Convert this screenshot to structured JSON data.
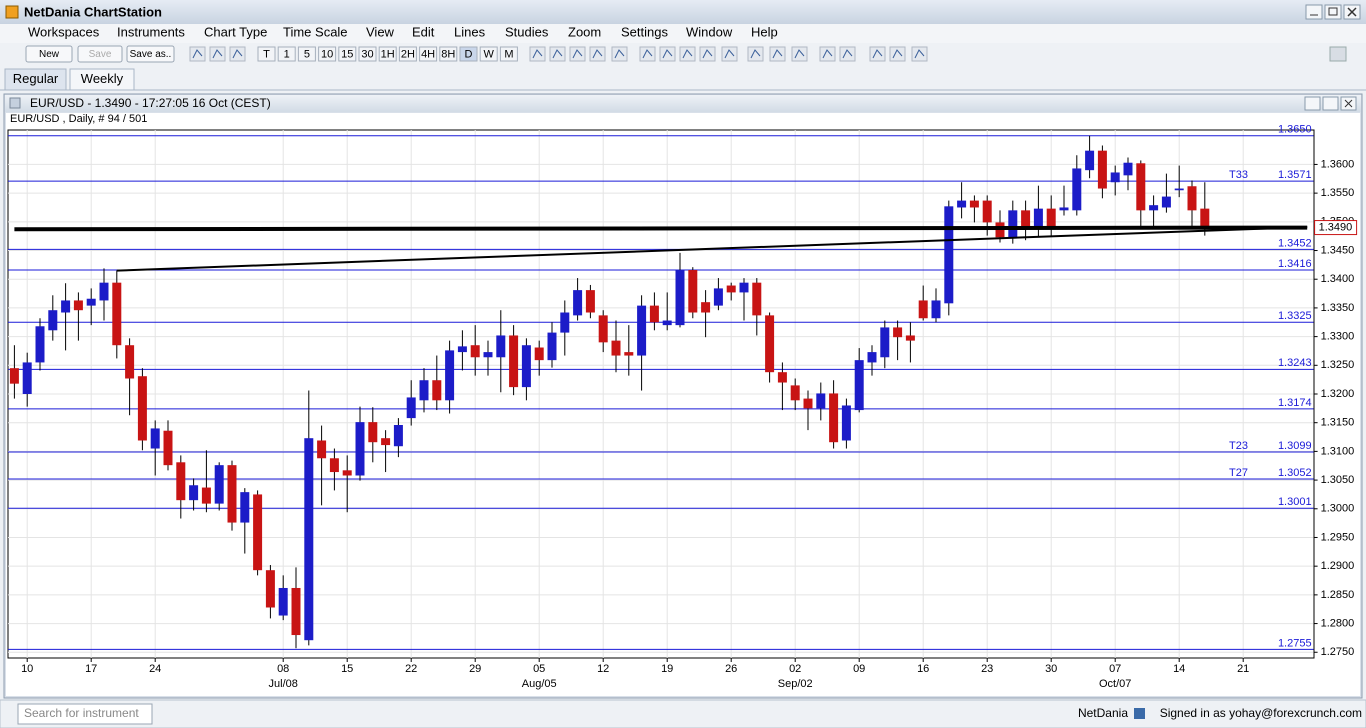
{
  "app": {
    "title": "NetDania ChartStation",
    "menu": [
      "Workspaces",
      "Instruments",
      "Chart Type",
      "Time Scale",
      "View",
      "Edit",
      "Lines",
      "Studies",
      "Zoom",
      "Settings",
      "Window",
      "Help"
    ],
    "toolbar_buttons": [
      "New",
      "Save",
      "Save as.."
    ],
    "timeframes": [
      "T",
      "1",
      "5",
      "10",
      "15",
      "30",
      "1H",
      "2H",
      "4H",
      "8H",
      "D",
      "W",
      "M"
    ],
    "tabs": [
      "Regular",
      "Weekly"
    ],
    "status": {
      "search_placeholder": "Search for instrument",
      "brand": "NetDania",
      "signed_in": "Signed in as yohay@forexcrunch.com"
    }
  },
  "window": {
    "title": "EUR/USD - 1.3490 - 17:27:05 16 Oct (CEST)",
    "subtitle": "EUR/USD , Daily, # 94 / 501"
  },
  "chart_data": {
    "type": "candlestick",
    "categories": [
      null,
      "10",
      null,
      null,
      null,
      null,
      "17",
      null,
      null,
      null,
      null,
      "24",
      null,
      null,
      null,
      null,
      null,
      null,
      null,
      null,
      null,
      "08",
      null,
      null,
      null,
      null,
      "15",
      null,
      null,
      null,
      null,
      "22",
      null,
      null,
      null,
      null,
      "29",
      null,
      null,
      null,
      null,
      "05",
      null,
      null,
      null,
      null,
      "12",
      null,
      null,
      null,
      null,
      "19",
      null,
      null,
      null,
      null,
      "26",
      null,
      null,
      null,
      null,
      "02",
      null,
      null,
      null,
      null,
      "09",
      null,
      null,
      null,
      null,
      "16",
      null,
      null,
      null,
      null,
      "23",
      null,
      null,
      null,
      null,
      "30",
      null,
      null,
      null,
      null,
      "07",
      null,
      null,
      null,
      null,
      "14",
      null,
      null,
      null,
      null,
      "21",
      null,
      null,
      null,
      null,
      null
    ],
    "month_labels": [
      null,
      null,
      null,
      null,
      null,
      null,
      null,
      null,
      null,
      null,
      null,
      null,
      null,
      null,
      null,
      null,
      null,
      null,
      null,
      null,
      null,
      "Jul/08",
      null,
      null,
      null,
      null,
      null,
      null,
      null,
      null,
      null,
      null,
      null,
      null,
      null,
      null,
      null,
      null,
      null,
      null,
      null,
      "Aug/05",
      null,
      null,
      null,
      null,
      null,
      null,
      null,
      null,
      null,
      null,
      null,
      null,
      null,
      null,
      null,
      null,
      null,
      null,
      null,
      "Sep/02",
      null,
      null,
      null,
      null,
      null,
      null,
      null,
      null,
      null,
      null,
      null,
      null,
      null,
      null,
      null,
      null,
      null,
      null,
      null,
      null,
      null,
      null,
      null,
      null,
      "Oct/07",
      null,
      null,
      null,
      null,
      null,
      null,
      null,
      null,
      null,
      null,
      null,
      null,
      null,
      null,
      null
    ],
    "open": [
      1.3245,
      1.32,
      1.3255,
      1.3311,
      1.3342,
      1.3363,
      1.3354,
      1.3363,
      1.3394,
      1.3285,
      1.3231,
      1.3105,
      1.3136,
      1.3081,
      1.3015,
      1.3037,
      1.3009,
      1.3076,
      1.2976,
      1.3025,
      1.2893,
      1.2814,
      1.2862,
      1.2771,
      1.3119,
      1.3088,
      1.3067,
      1.3058,
      1.3151,
      1.3123,
      1.3109,
      1.3158,
      1.3189,
      1.3224,
      1.3189,
      1.3273,
      1.3285,
      1.3264,
      1.3264,
      1.3302,
      1.3212,
      1.3281,
      1.3259,
      1.3307,
      1.3337,
      1.3381,
      1.3337,
      1.3293,
      1.3273,
      1.3267,
      1.3354,
      1.332,
      1.332,
      1.3416,
      1.336,
      1.3354,
      1.3389,
      1.3377,
      1.3394,
      1.3337,
      1.3238,
      1.3215,
      1.3192,
      1.3175,
      1.3201,
      1.3119,
      1.3172,
      1.3255,
      1.3264,
      1.3316,
      1.3302,
      1.3363,
      1.3332,
      1.3358,
      1.3525,
      1.3537,
      1.3537,
      1.3499,
      1.3473,
      1.352,
      1.3489,
      1.3523,
      1.352,
      1.352,
      1.359,
      1.3624,
      1.3569,
      1.3581,
      1.3602,
      1.352,
      1.3525,
      1.3555,
      1.3562,
      1.3523,
      null,
      null,
      null,
      null,
      null,
      null,
      null,
      null
    ],
    "high": [
      1.3285,
      1.3272,
      1.3332,
      1.3372,
      1.3393,
      1.3377,
      1.3384,
      1.3419,
      1.3415,
      1.3297,
      1.3245,
      1.3154,
      1.3154,
      1.3093,
      1.3053,
      1.3102,
      1.3081,
      1.3084,
      1.3036,
      1.3032,
      1.2902,
      1.2884,
      1.2898,
      1.3206,
      1.3145,
      1.3105,
      1.3093,
      1.3178,
      1.3177,
      1.3137,
      1.3158,
      1.3224,
      1.3245,
      1.3267,
      1.3293,
      1.3311,
      1.332,
      1.3293,
      1.3346,
      1.332,
      1.3297,
      1.3293,
      1.3325,
      1.3363,
      1.3402,
      1.339,
      1.3346,
      1.3328,
      1.332,
      1.3372,
      1.3377,
      1.3377,
      1.3446,
      1.3421,
      1.3381,
      1.3402,
      1.3394,
      1.3402,
      1.3402,
      1.3342,
      1.3255,
      1.3227,
      1.3206,
      1.322,
      1.3224,
      1.3192,
      1.328,
      1.3285,
      1.3328,
      1.3328,
      1.3325,
      1.3389,
      1.3384,
      1.3537,
      1.3569,
      1.3546,
      1.3546,
      1.352,
      1.3537,
      1.3537,
      1.3563,
      1.3546,
      1.3563,
      1.3616,
      1.365,
      1.3633,
      1.3598,
      1.3612,
      1.3607,
      1.3546,
      1.3584,
      1.3598,
      1.3572,
      1.3569,
      null,
      null,
      null,
      null,
      null,
      null,
      null,
      null
    ],
    "low": [
      1.3192,
      1.3178,
      1.3241,
      1.3293,
      1.3276,
      1.3293,
      1.332,
      1.3328,
      1.3262,
      1.3163,
      1.3102,
      1.3058,
      1.3067,
      1.2983,
      1.2997,
      1.2994,
      1.2997,
      1.2962,
      1.2922,
      1.2884,
      1.2809,
      1.2806,
      1.2757,
      1.2762,
      1.3006,
      1.3032,
      1.2994,
      1.3049,
      1.3081,
      1.3064,
      1.309,
      1.3145,
      1.3168,
      1.3172,
      1.3166,
      1.3241,
      1.3232,
      1.3232,
      1.3203,
      1.3198,
      1.3189,
      1.3232,
      1.3246,
      1.3267,
      1.3328,
      1.3332,
      1.3273,
      1.3238,
      1.3232,
      1.3206,
      1.3311,
      1.3311,
      1.3316,
      1.3332,
      1.3299,
      1.3346,
      1.3363,
      1.3328,
      1.3302,
      1.322,
      1.3172,
      1.3172,
      1.3137,
      1.3154,
      1.3105,
      1.3105,
      1.3168,
      1.3232,
      1.3245,
      1.3259,
      1.3255,
      1.3328,
      1.3325,
      1.3337,
      1.3506,
      1.3499,
      1.3476,
      1.3464,
      1.3462,
      1.3468,
      1.3475,
      1.3476,
      1.3511,
      1.3511,
      1.3576,
      1.3541,
      1.3546,
      1.3555,
      1.3489,
      1.3489,
      1.3516,
      1.3543,
      1.3489,
      1.3476,
      null,
      null,
      null,
      null,
      null,
      null,
      null,
      null
    ],
    "close": [
      1.3218,
      1.3255,
      1.3318,
      1.3346,
      1.3363,
      1.3346,
      1.3366,
      1.3394,
      1.3285,
      1.3227,
      1.3119,
      1.314,
      1.3076,
      1.3015,
      1.3041,
      1.3009,
      1.3076,
      1.2976,
      1.3029,
      1.2893,
      1.2828,
      1.2862,
      1.278,
      1.3123,
      1.3088,
      1.3064,
      1.3058,
      1.3151,
      1.3116,
      1.3111,
      1.3146,
      1.3194,
      1.3224,
      1.3189,
      1.3276,
      1.3283,
      1.3264,
      1.3273,
      1.3302,
      1.3212,
      1.3285,
      1.3259,
      1.3307,
      1.3342,
      1.3381,
      1.3342,
      1.329,
      1.3267,
      1.3267,
      1.3354,
      1.3325,
      1.3328,
      1.3416,
      1.3342,
      1.3342,
      1.3384,
      1.3377,
      1.3394,
      1.3337,
      1.3238,
      1.322,
      1.3189,
      1.3175,
      1.3201,
      1.3116,
      1.318,
      1.3259,
      1.3273,
      1.3316,
      1.3299,
      1.3293,
      1.3332,
      1.3363,
      1.3527,
      1.3537,
      1.3525,
      1.3499,
      1.3473,
      1.352,
      1.3489,
      1.3523,
      1.3489,
      1.3525,
      1.3593,
      1.3624,
      1.3558,
      1.3586,
      1.3603,
      1.352,
      1.3529,
      1.3544,
      1.3558,
      1.352,
      1.349,
      null,
      null,
      null,
      null,
      null,
      null,
      null,
      null
    ],
    "up_color": "#1c1cc8",
    "down_color": "#c81414",
    "wick_color": "#000000",
    "ylim": [
      1.274,
      1.366
    ],
    "yticks": [
      {
        "value": 1.275,
        "label": "1.2750"
      },
      {
        "value": 1.28,
        "label": "1.2800"
      },
      {
        "value": 1.285,
        "label": "1.2850"
      },
      {
        "value": 1.29,
        "label": "1.2900"
      },
      {
        "value": 1.295,
        "label": "1.2950"
      },
      {
        "value": 1.3,
        "label": "1.3000"
      },
      {
        "value": 1.305,
        "label": "1.3050"
      },
      {
        "value": 1.31,
        "label": "1.3100"
      },
      {
        "value": 1.315,
        "label": "1.3150"
      },
      {
        "value": 1.32,
        "label": "1.3200"
      },
      {
        "value": 1.325,
        "label": "1.3250"
      },
      {
        "value": 1.33,
        "label": "1.3300"
      },
      {
        "value": 1.335,
        "label": "1.3350"
      },
      {
        "value": 1.34,
        "label": "1.3400"
      },
      {
        "value": 1.345,
        "label": "1.3450"
      },
      {
        "value": 1.35,
        "label": "1.3500"
      },
      {
        "value": 1.355,
        "label": "1.3550"
      },
      {
        "value": 1.36,
        "label": "1.3600"
      }
    ],
    "grid": true,
    "levels": [
      {
        "value": 1.365,
        "label": "1.3650"
      },
      {
        "value": 1.3571,
        "label": "1.3571"
      },
      {
        "value": 1.3452,
        "label": "1.3452"
      },
      {
        "value": 1.3416,
        "label": "1.3416"
      },
      {
        "value": 1.3325,
        "label": "1.3325"
      },
      {
        "value": 1.3243,
        "label": "1.3243"
      },
      {
        "value": 1.3174,
        "label": "1.3174"
      },
      {
        "value": 1.3099,
        "label": "1.3099"
      },
      {
        "value": 1.3052,
        "label": "1.3052"
      },
      {
        "value": 1.3001,
        "label": "1.3001"
      },
      {
        "value": 1.2755,
        "label": "1.2755"
      }
    ],
    "level_tags": [
      null,
      "T33",
      null,
      null,
      null,
      null,
      null,
      "T23",
      "T27",
      null,
      null
    ],
    "level_color": "#1a1ad8",
    "trendlines": [
      {
        "x": [
          0,
          101
        ],
        "y": [
          1.3487,
          1.349
        ],
        "width": 4
      },
      {
        "x": [
          8,
          101
        ],
        "y": [
          1.3415,
          1.3491
        ],
        "width": 2
      }
    ],
    "last_price_label": "1.3490"
  }
}
